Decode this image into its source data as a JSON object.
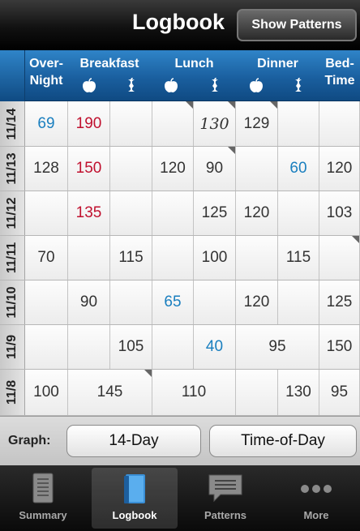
{
  "header": {
    "title": "Logbook",
    "show_patterns_label": "Show Patterns"
  },
  "columns": {
    "overnight": "Over-\nNight",
    "breakfast": "Breakfast",
    "lunch": "Lunch",
    "dinner": "Dinner",
    "bedtime": "Bed-\nTime"
  },
  "colors": {
    "high": "#c0102e",
    "low": "#1a7fbf",
    "normal": "#333333",
    "handwritten": "#333333"
  },
  "rows": [
    {
      "date": "11/14",
      "cells": [
        {
          "v": "69",
          "c": "low"
        },
        {
          "v": "190",
          "c": "high"
        },
        {
          "v": ""
        },
        {
          "v": "",
          "note": true
        },
        {
          "v": "130",
          "c": "handwritten",
          "italic": true,
          "note": true
        },
        {
          "v": "129",
          "note": true
        },
        {
          "v": ""
        },
        {
          "v": ""
        }
      ]
    },
    {
      "date": "11/13",
      "cells": [
        {
          "v": "128"
        },
        {
          "v": "150",
          "c": "high"
        },
        {
          "v": ""
        },
        {
          "v": "120"
        },
        {
          "v": "90",
          "note": true
        },
        {
          "v": ""
        },
        {
          "v": "60",
          "c": "low"
        },
        {
          "v": "120"
        }
      ]
    },
    {
      "date": "11/12",
      "cells": [
        {
          "v": ""
        },
        {
          "v": "135",
          "c": "high"
        },
        {
          "v": ""
        },
        {
          "v": ""
        },
        {
          "v": "125"
        },
        {
          "v": "120"
        },
        {
          "v": ""
        },
        {
          "v": "103"
        }
      ]
    },
    {
      "date": "11/11",
      "cells": [
        {
          "v": "70"
        },
        {
          "v": ""
        },
        {
          "v": "115"
        },
        {
          "v": ""
        },
        {
          "v": "100"
        },
        {
          "v": ""
        },
        {
          "v": "115"
        },
        {
          "v": "",
          "note": true
        }
      ]
    },
    {
      "date": "11/10",
      "cells": [
        {
          "v": "",
          "span": 0
        },
        {
          "v": "90"
        },
        {
          "v": ""
        },
        {
          "v": "65",
          "c": "low"
        },
        {
          "v": ""
        },
        {
          "v": "120"
        },
        {
          "v": ""
        },
        {
          "v": "125"
        }
      ]
    },
    {
      "date": "11/9",
      "cells": [
        {
          "v": ""
        },
        {
          "v": ""
        },
        {
          "v": "105"
        },
        {
          "v": ""
        },
        {
          "v": "40",
          "c": "low"
        },
        {
          "v": "95",
          "wide": true
        },
        {
          "v": "150"
        }
      ]
    },
    {
      "date": "11/8",
      "cells": [
        {
          "v": "100"
        },
        {
          "v": "145",
          "wide": true,
          "note": true
        },
        {
          "v": "110",
          "wide": true
        },
        {
          "v": ""
        },
        {
          "v": "130"
        },
        {
          "v": "95"
        }
      ]
    }
  ],
  "graph": {
    "label": "Graph:",
    "btn_14day": "14-Day",
    "btn_timeofday": "Time-of-Day"
  },
  "tabs": [
    {
      "label": "Summary",
      "icon": "document-icon",
      "active": false
    },
    {
      "label": "Logbook",
      "icon": "book-icon",
      "active": true
    },
    {
      "label": "Patterns",
      "icon": "speech-bubble-icon",
      "active": false
    },
    {
      "label": "More",
      "icon": "more-dots-icon",
      "active": false
    }
  ]
}
